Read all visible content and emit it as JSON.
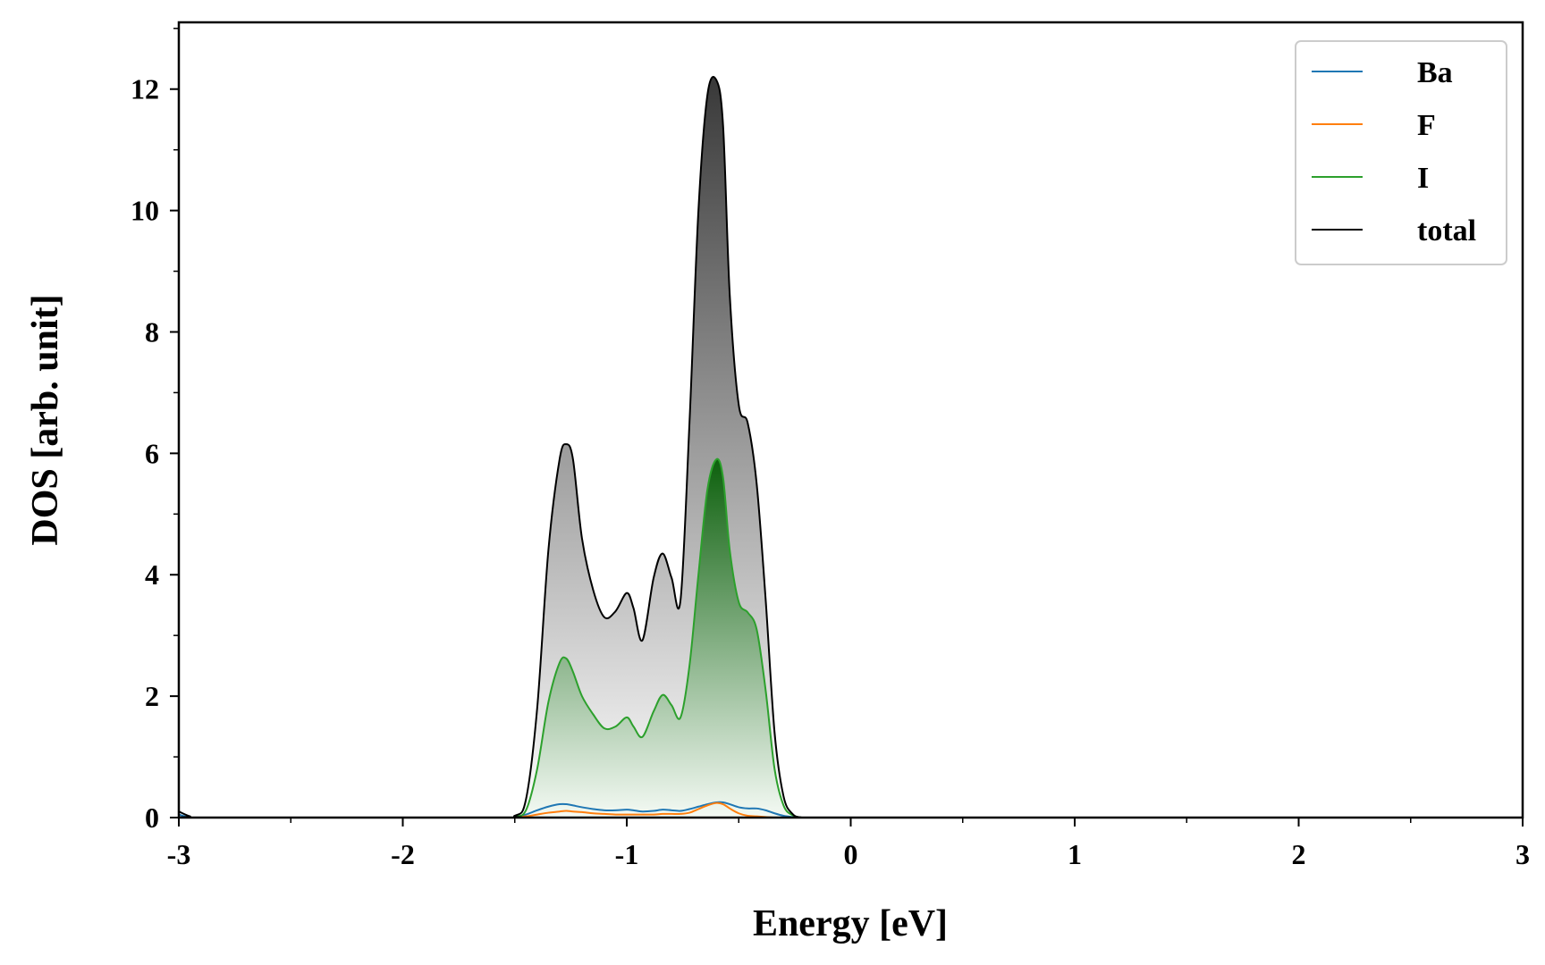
{
  "chart_data": {
    "type": "area",
    "title": "",
    "xlabel": "Energy [eV]",
    "ylabel": "DOS [arb. unit]",
    "xlim": [
      -3,
      3
    ],
    "ylim": [
      0,
      13.1
    ],
    "x_ticks": [
      -3,
      -2,
      -1,
      0,
      1,
      2,
      3
    ],
    "x_tick_labels": [
      "-3",
      "-2",
      "-1",
      "0",
      "1",
      "2",
      "3"
    ],
    "y_ticks": [
      0,
      2,
      4,
      6,
      8,
      10,
      12
    ],
    "y_tick_labels": [
      "0",
      "2",
      "4",
      "6",
      "8",
      "10",
      "12"
    ],
    "grid": false,
    "legend_position": "top-right",
    "x": [
      -3.0,
      -2.95,
      -2.9,
      -1.6,
      -1.5,
      -1.45,
      -1.4,
      -1.35,
      -1.3,
      -1.27,
      -1.24,
      -1.2,
      -1.15,
      -1.1,
      -1.05,
      -1.0,
      -0.97,
      -0.93,
      -0.88,
      -0.84,
      -0.8,
      -0.76,
      -0.72,
      -0.68,
      -0.64,
      -0.6,
      -0.57,
      -0.54,
      -0.5,
      -0.46,
      -0.42,
      -0.38,
      -0.34,
      -0.3,
      -0.26,
      -0.22,
      -0.18,
      0.0,
      3.0
    ],
    "series": [
      {
        "name": "Ba",
        "color": "#1f77b4",
        "values": [
          0.05,
          0.0,
          0.0,
          0.0,
          0.01,
          0.05,
          0.12,
          0.18,
          0.22,
          0.22,
          0.2,
          0.17,
          0.14,
          0.12,
          0.12,
          0.13,
          0.12,
          0.1,
          0.11,
          0.13,
          0.12,
          0.11,
          0.14,
          0.18,
          0.22,
          0.25,
          0.25,
          0.22,
          0.17,
          0.15,
          0.15,
          0.12,
          0.07,
          0.03,
          0.01,
          0.0,
          0.0,
          0.0,
          0.0
        ]
      },
      {
        "name": "F",
        "color": "#ff7f0e",
        "values": [
          0.0,
          0.0,
          0.0,
          0.0,
          0.0,
          0.02,
          0.05,
          0.08,
          0.1,
          0.11,
          0.1,
          0.09,
          0.07,
          0.06,
          0.05,
          0.05,
          0.05,
          0.05,
          0.05,
          0.06,
          0.06,
          0.06,
          0.08,
          0.14,
          0.2,
          0.24,
          0.22,
          0.15,
          0.07,
          0.03,
          0.02,
          0.01,
          0.0,
          0.0,
          0.0,
          0.0,
          0.0,
          0.0,
          0.0
        ]
      },
      {
        "name": "I",
        "color": "#2ca02c",
        "values": [
          0.0,
          0.0,
          0.0,
          0.0,
          0.02,
          0.12,
          0.8,
          1.9,
          2.55,
          2.62,
          2.4,
          2.0,
          1.7,
          1.47,
          1.5,
          1.65,
          1.5,
          1.33,
          1.75,
          2.02,
          1.85,
          1.65,
          2.5,
          4.0,
          5.4,
          5.9,
          5.6,
          4.4,
          3.55,
          3.38,
          3.1,
          2.1,
          0.8,
          0.2,
          0.04,
          0.0,
          0.0,
          0.0,
          0.0
        ]
      },
      {
        "name": "total",
        "color": "#000000",
        "values": [
          0.1,
          0.02,
          0.0,
          0.0,
          0.03,
          0.3,
          1.8,
          4.4,
          5.9,
          6.15,
          5.9,
          4.6,
          3.75,
          3.3,
          3.4,
          3.7,
          3.45,
          2.92,
          3.95,
          4.35,
          3.95,
          3.58,
          6.5,
          10.0,
          11.9,
          12.15,
          11.4,
          8.6,
          6.8,
          6.5,
          5.5,
          3.6,
          1.4,
          0.35,
          0.06,
          0.0,
          0.0,
          0.0,
          0.0
        ]
      }
    ],
    "legend": [
      "Ba",
      "F",
      "I",
      "total"
    ]
  }
}
